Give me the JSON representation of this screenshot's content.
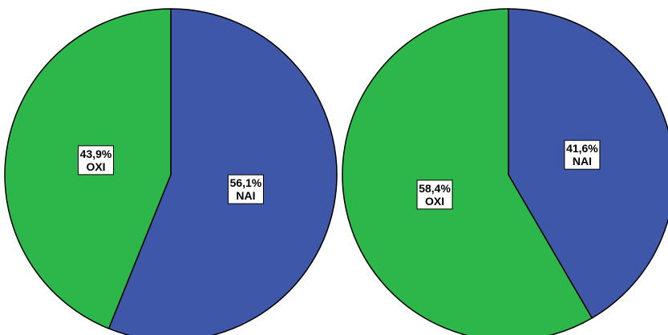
{
  "colors": {
    "NAI": "#3f57a8",
    "OXI": "#2db64a",
    "outline": "#000000",
    "label_bg": "#ffffff"
  },
  "chart_data": [
    {
      "type": "pie",
      "title": "",
      "slices": [
        {
          "label": "NAI",
          "value": 56.1,
          "display": "56,1%"
        },
        {
          "label": "OXI",
          "value": 43.9,
          "display": "43,9%"
        }
      ]
    },
    {
      "type": "pie",
      "title": "",
      "slices": [
        {
          "label": "NAI",
          "value": 41.6,
          "display": "41,6%"
        },
        {
          "label": "OXI",
          "value": 58.4,
          "display": "58,4%"
        }
      ]
    }
  ]
}
